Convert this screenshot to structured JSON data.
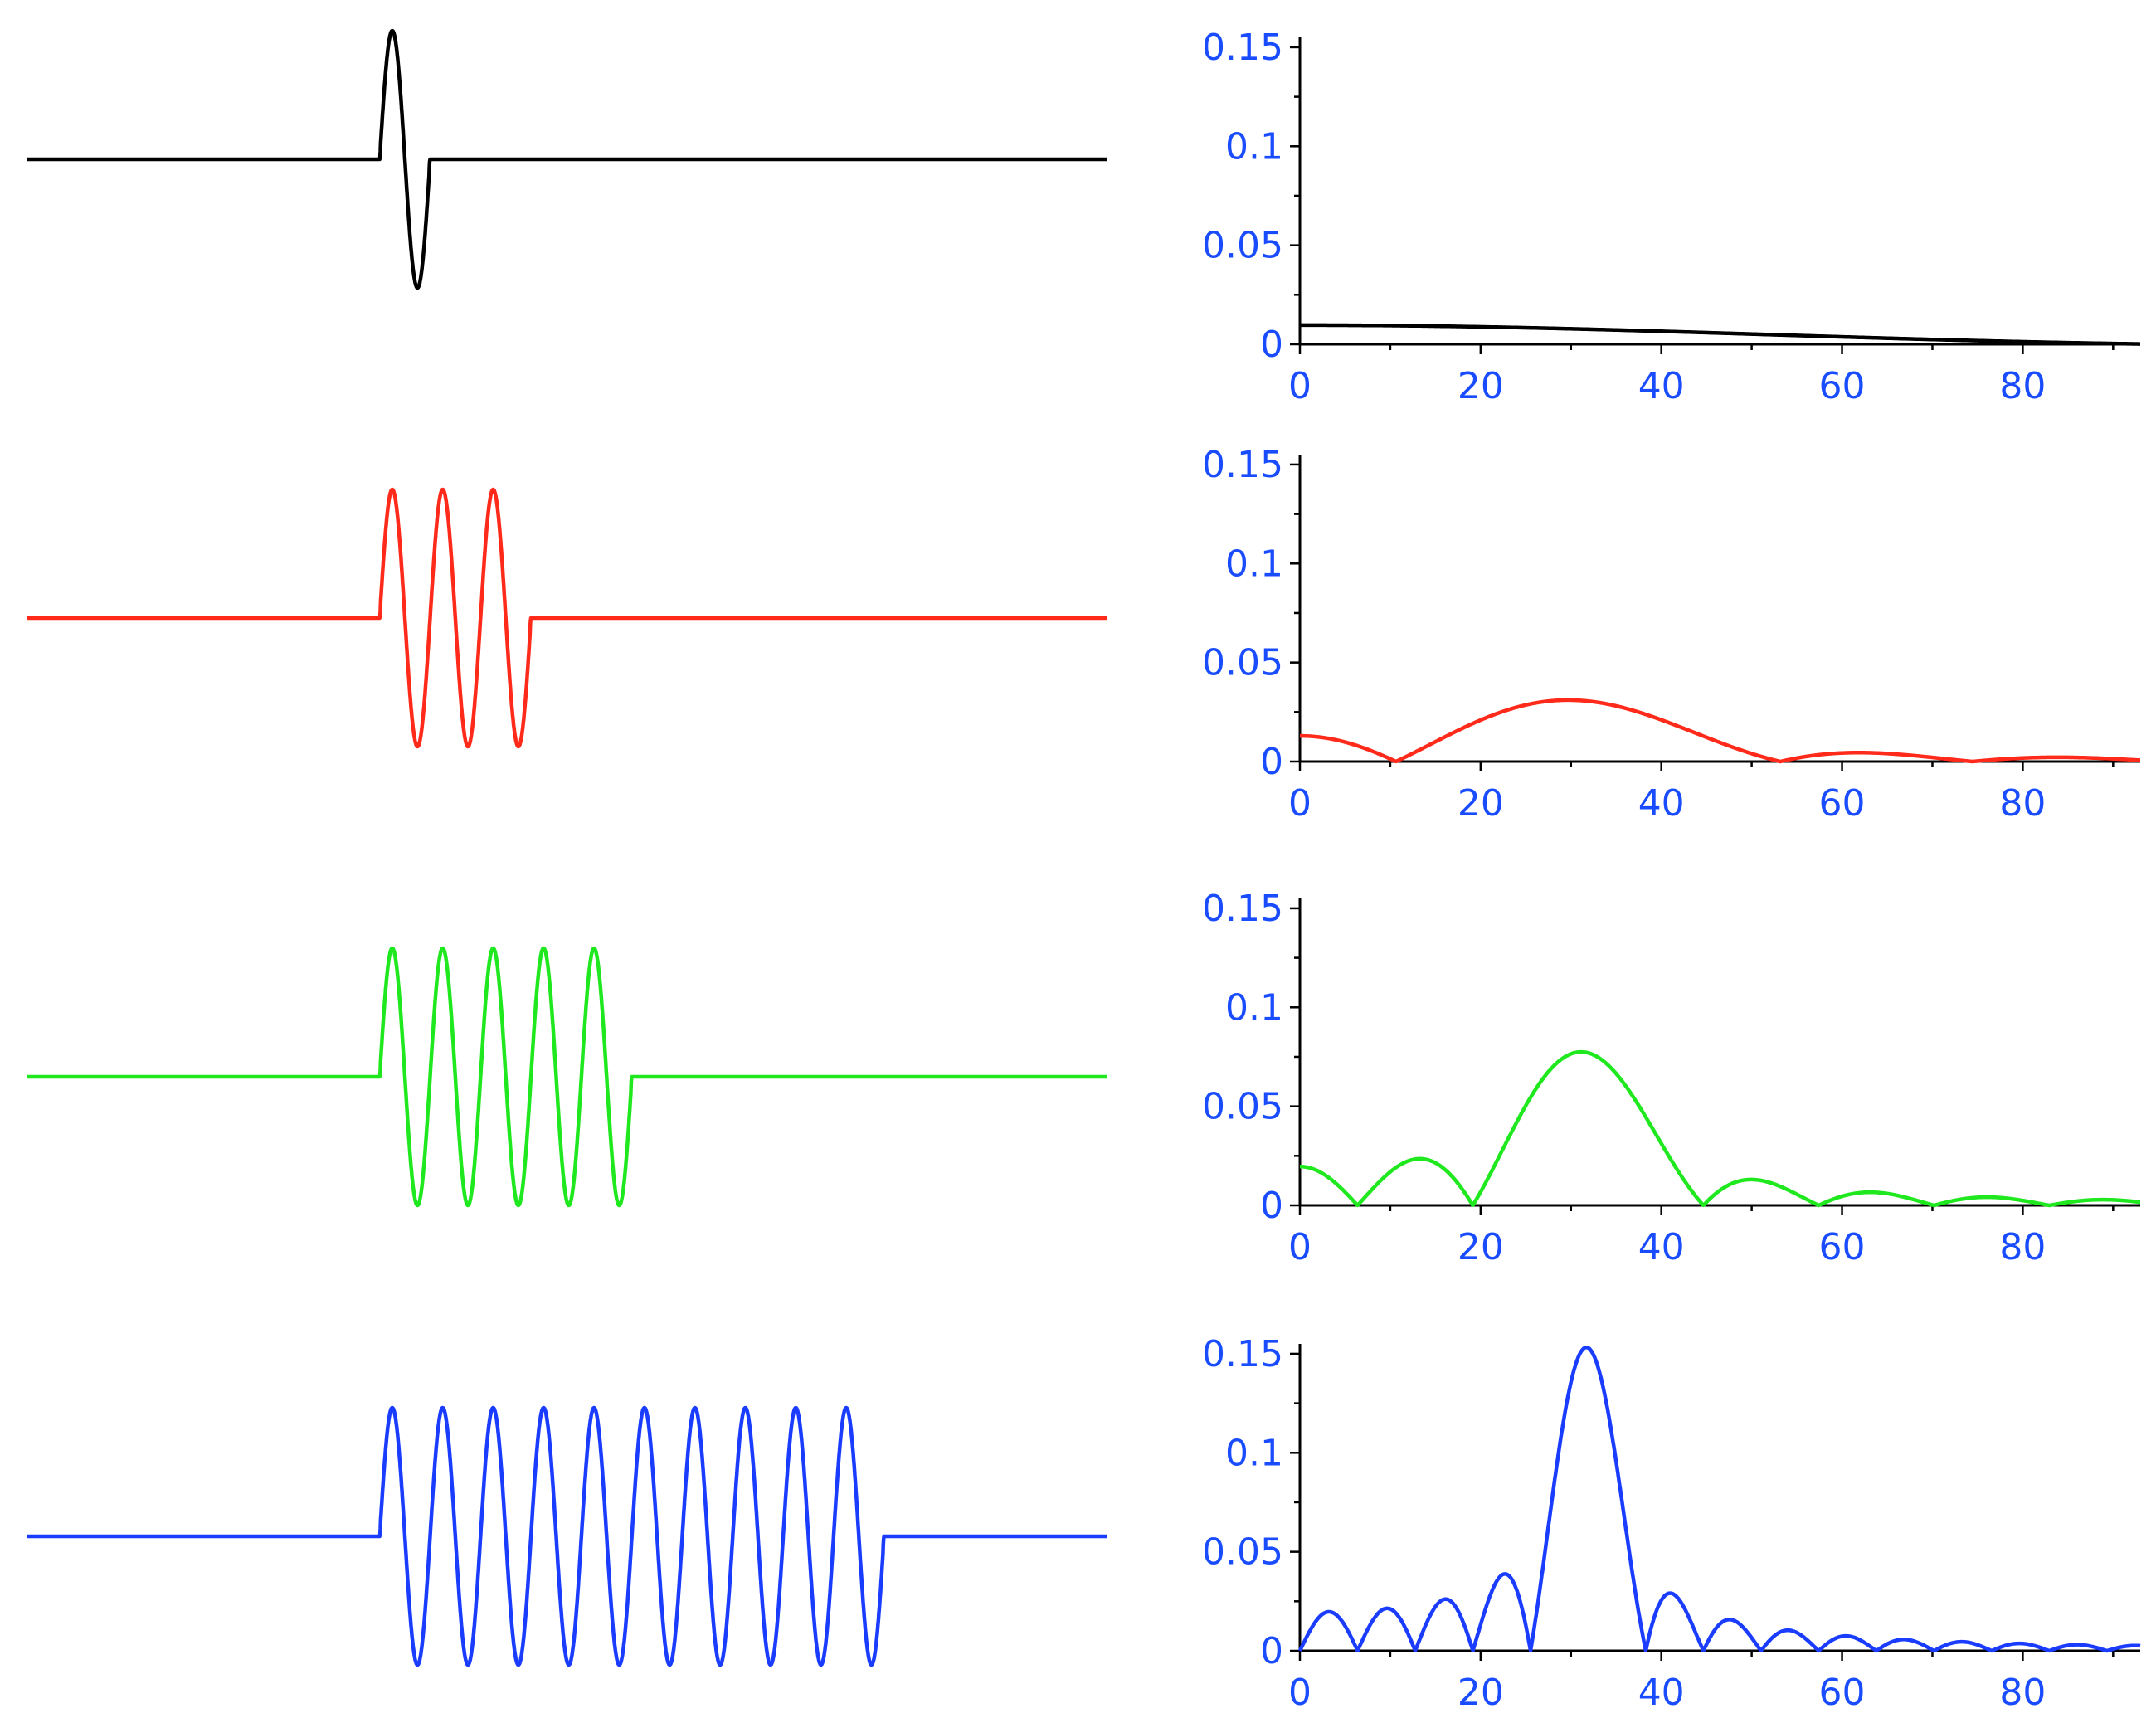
{
  "chart_data": [
    {
      "type": "line",
      "panel": "signal",
      "color": "#000000",
      "cycles": 1,
      "x_domain": [
        0,
        60
      ],
      "burst_start": 19.6,
      "period": 2.8,
      "title": "",
      "xlabel": "",
      "ylabel": ""
    },
    {
      "type": "line",
      "panel": "signal",
      "color": "#ff2a1a",
      "cycles": 3,
      "x_domain": [
        0,
        60
      ],
      "burst_start": 19.6,
      "period": 2.8,
      "title": "",
      "xlabel": "",
      "ylabel": ""
    },
    {
      "type": "line",
      "panel": "signal",
      "color": "#1fe81f",
      "cycles": 5,
      "x_domain": [
        0,
        60
      ],
      "burst_start": 19.6,
      "period": 2.8,
      "title": "",
      "xlabel": "",
      "ylabel": ""
    },
    {
      "type": "line",
      "panel": "signal",
      "color": "#1a3cff",
      "cycles": 10,
      "x_domain": [
        0,
        60
      ],
      "burst_start": 19.6,
      "period": 2.8,
      "title": "",
      "xlabel": "",
      "ylabel": ""
    },
    {
      "type": "line",
      "panel": "spectrum",
      "color": "#000000",
      "cycles": 1,
      "center": 31.9,
      "amplitude": 0.0152,
      "xlim": [
        0,
        93
      ],
      "ylim": [
        0,
        0.155
      ],
      "x_ticks": [
        0,
        20,
        40,
        60,
        80
      ],
      "x_tick_labels": [
        "0",
        "20",
        "40",
        "60",
        "80"
      ],
      "y_ticks": [
        0,
        0.05,
        0.1,
        0.15
      ],
      "y_tick_labels": [
        "0",
        "0.05",
        "0.1",
        "0.15"
      ],
      "grid": false,
      "title": "",
      "xlabel": "",
      "ylabel": ""
    },
    {
      "type": "line",
      "panel": "spectrum",
      "color": "#ff2a1a",
      "cycles": 3,
      "center": 31.9,
      "amplitude": 0.0305,
      "xlim": [
        0,
        93
      ],
      "ylim": [
        0,
        0.155
      ],
      "x_ticks": [
        0,
        20,
        40,
        60,
        80
      ],
      "x_tick_labels": [
        "0",
        "20",
        "40",
        "60",
        "80"
      ],
      "y_ticks": [
        0,
        0.05,
        0.1,
        0.15
      ],
      "y_tick_labels": [
        "0",
        "0.05",
        "0.1",
        "0.15"
      ],
      "grid": false,
      "title": "",
      "xlabel": "",
      "ylabel": ""
    },
    {
      "type": "line",
      "panel": "spectrum",
      "color": "#1fe81f",
      "cycles": 5,
      "center": 31.9,
      "amplitude": 0.077,
      "xlim": [
        0,
        93
      ],
      "ylim": [
        0,
        0.155
      ],
      "x_ticks": [
        0,
        20,
        40,
        60,
        80
      ],
      "x_tick_labels": [
        "0",
        "20",
        "40",
        "60",
        "80"
      ],
      "y_ticks": [
        0,
        0.05,
        0.1,
        0.15
      ],
      "y_tick_labels": [
        "0",
        "0.05",
        "0.1",
        "0.15"
      ],
      "grid": false,
      "title": "",
      "xlabel": "",
      "ylabel": ""
    },
    {
      "type": "line",
      "panel": "spectrum",
      "color": "#1a3cff",
      "cycles": 10,
      "center": 31.9,
      "amplitude": 0.153,
      "xlim": [
        0,
        93
      ],
      "ylim": [
        0,
        0.155
      ],
      "x_ticks": [
        0,
        20,
        40,
        60,
        80
      ],
      "x_tick_labels": [
        "0",
        "20",
        "40",
        "60",
        "80"
      ],
      "y_ticks": [
        0,
        0.05,
        0.1,
        0.15
      ],
      "y_tick_labels": [
        "0",
        "0.05",
        "0.1",
        "0.15"
      ],
      "grid": false,
      "title": "",
      "xlabel": "",
      "ylabel": ""
    }
  ],
  "axis_color": "#1a4cff"
}
